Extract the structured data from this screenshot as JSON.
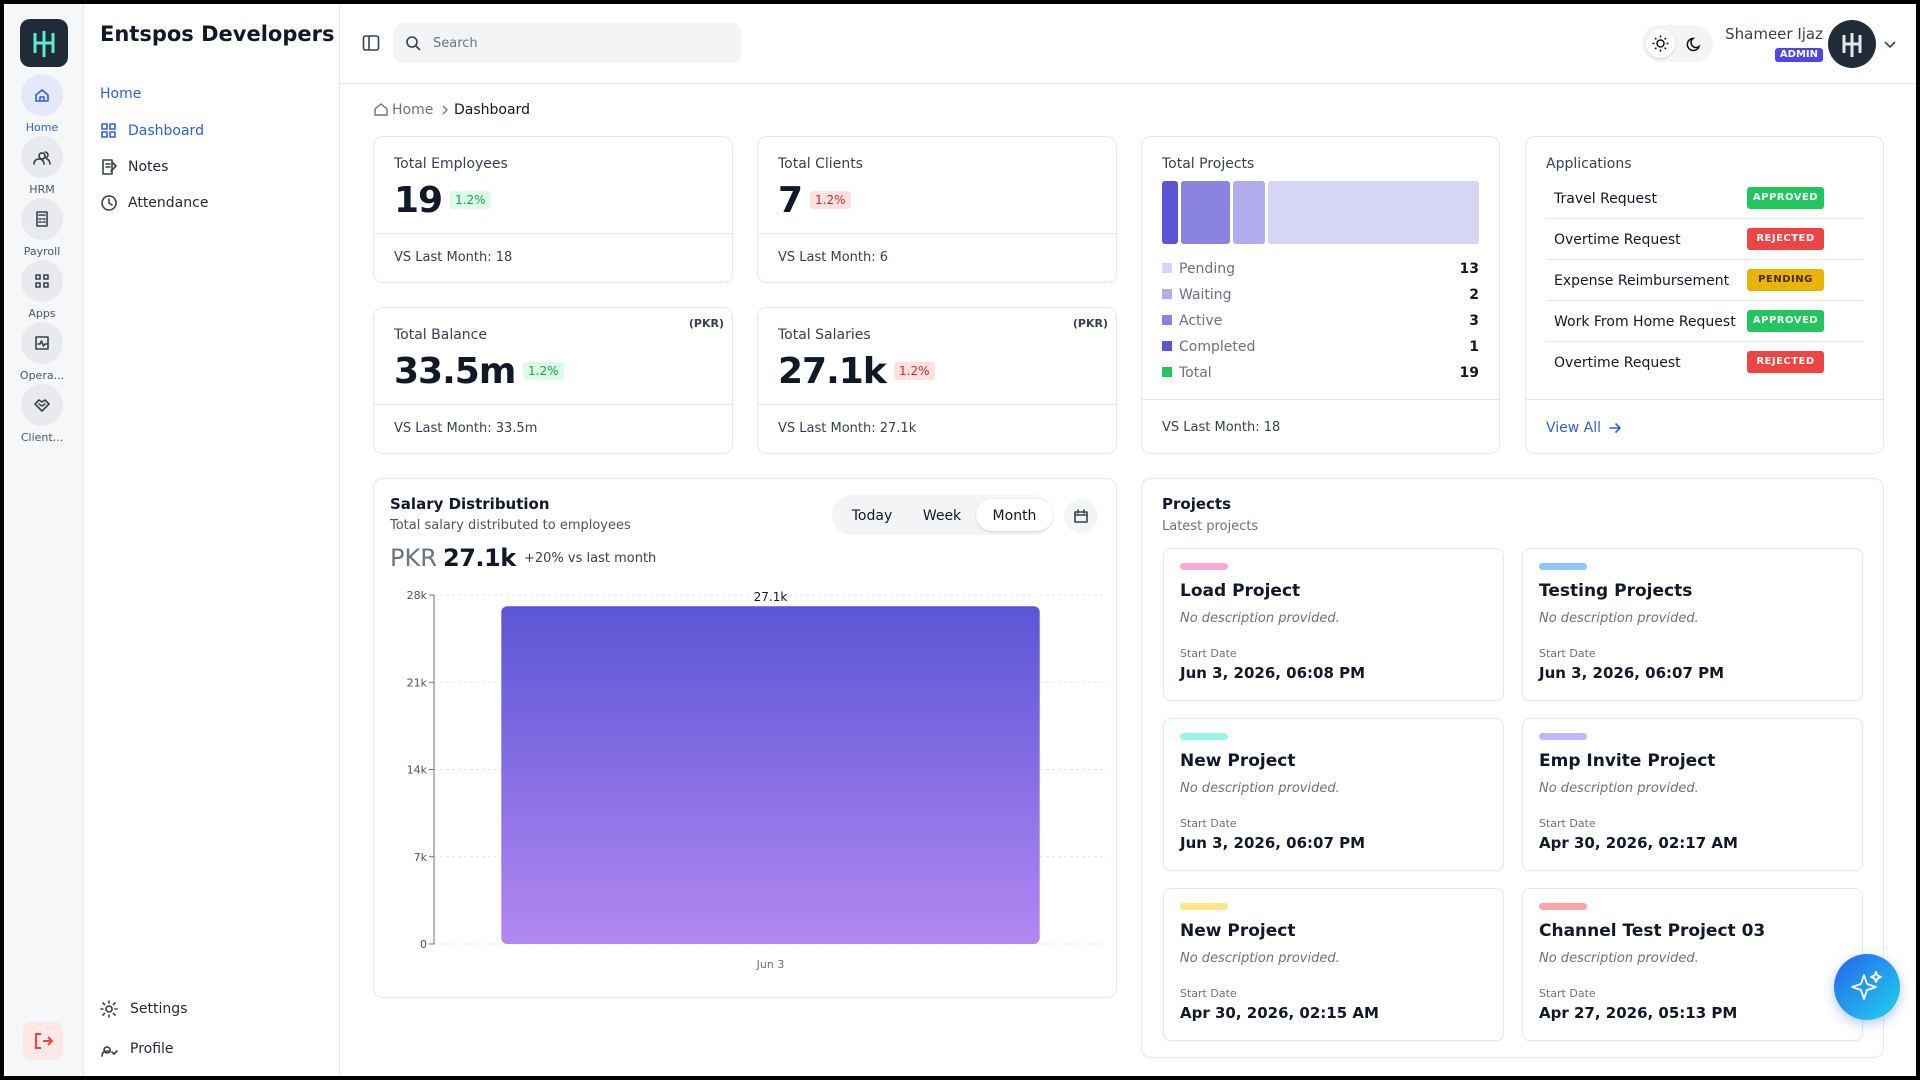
{
  "rail": {
    "items": [
      "Home",
      "HRM",
      "Payroll",
      "Apps",
      "Opera...",
      "Client..."
    ],
    "active": 0
  },
  "brand": "Entspos Developers",
  "nav": {
    "section": "Home",
    "items": [
      "Dashboard",
      "Notes",
      "Attendance"
    ],
    "active": 0,
    "footer": [
      "Settings",
      "Profile"
    ]
  },
  "topbar": {
    "search_placeholder": "Search",
    "user_name": "Shameer Ijaz",
    "user_role": "ADMIN"
  },
  "breadcrumb": [
    "Home",
    "Dashboard"
  ],
  "stats": [
    {
      "title": "Total Employees",
      "value": "19",
      "change": "1.2%",
      "change_color": "#16a34a",
      "change_bg": "#dcfce7",
      "previous": "VS Last Month: 18"
    },
    {
      "title": "Total Clients",
      "value": "7",
      "change": "1.2%",
      "change_color": "#dc2626",
      "change_bg": "#fee2e2",
      "previous": "VS Last Month: 6"
    },
    {
      "title": "Total Balance",
      "unit": "(PKR)",
      "value": "33.5m",
      "change": "1.2%",
      "change_color": "#16a34a",
      "change_bg": "#dcfce7",
      "previous": "VS Last Month: 33.5m"
    },
    {
      "title": "Total Salaries",
      "unit": "(PKR)",
      "value": "27.1k",
      "change": "1.2%",
      "change_color": "#dc2626",
      "change_bg": "#fee2e2",
      "previous": "VS Last Month: 27.1k"
    }
  ],
  "projects_summary": {
    "title": "Total Projects",
    "statuses": [
      {
        "name": "Pending",
        "count": 13,
        "color": "#d6d5f6"
      },
      {
        "name": "Waiting",
        "count": 2,
        "color": "#b0acee"
      },
      {
        "name": "Active",
        "count": 3,
        "color": "#8a84e0"
      },
      {
        "name": "Completed",
        "count": 1,
        "color": "#5b54d4"
      }
    ],
    "total_label": "Total",
    "total": 19,
    "total_color": "#22c55e",
    "previous": "VS Last Month: 18"
  },
  "applications": {
    "title": "Applications",
    "items": [
      {
        "name": "Travel Request",
        "status": "APPROVED",
        "color": "#22c55e",
        "text_color": "#ffffff"
      },
      {
        "name": "Overtime Request",
        "status": "REJECTED",
        "color": "#ef4444",
        "text_color": "#ffffff"
      },
      {
        "name": "Expense Reimbursement",
        "status": "PENDING",
        "color": "#eab308",
        "text_color": "#3f2d00"
      },
      {
        "name": "Work From Home Request",
        "status": "APPROVED",
        "color": "#22c55e",
        "text_color": "#ffffff"
      },
      {
        "name": "Overtime Request",
        "status": "REJECTED",
        "color": "#ef4444",
        "text_color": "#ffffff"
      }
    ],
    "link": "View All"
  },
  "salary": {
    "title": "Salary Distribution",
    "subtitle": "Total salary distributed to employees",
    "ranges": [
      "Today",
      "Week",
      "Month"
    ],
    "active_range": 2,
    "currency": "PKR",
    "amount": "27.1k",
    "change": "+20% vs last month"
  },
  "chart_data": {
    "type": "bar",
    "categories": [
      "Jun 3"
    ],
    "values": [
      27100
    ],
    "value_labels": [
      "27.1k"
    ],
    "gradient": [
      "#5b56d6",
      "#b387f1"
    ],
    "ylim": [
      0,
      28000
    ],
    "yticks": [
      0,
      {
        "value": 7000,
        "label": "7k"
      },
      {
        "value": 14000,
        "label": "14k"
      },
      {
        "value": 21000,
        "label": "21k"
      },
      {
        "value": 28000,
        "label": "28k"
      }
    ],
    "grid": true
  },
  "projects": {
    "title": "Projects",
    "subtitle": "Latest projects",
    "items": [
      {
        "name": "Load Project",
        "description": "No description provided.",
        "date_label": "Start Date",
        "date": "Jun 3, 2026, 06:08 PM",
        "color": "#f9a8d4"
      },
      {
        "name": "Testing Projects",
        "description": "No description provided.",
        "date_label": "Start Date",
        "date": "Jun 3, 2026, 06:07 PM",
        "color": "#93c5fd"
      },
      {
        "name": "New Project",
        "description": "No description provided.",
        "date_label": "Start Date",
        "date": "Jun 3, 2026, 06:07 PM",
        "color": "#99f6e4"
      },
      {
        "name": "Emp Invite Project",
        "description": "No description provided.",
        "date_label": "Start Date",
        "date": "Apr 30, 2026, 02:17 AM",
        "color": "#c4b5fd"
      },
      {
        "name": "New Project",
        "description": "No description provided.",
        "date_label": "Start Date",
        "date": "Apr 30, 2026, 02:15 AM",
        "color": "#fde68a"
      },
      {
        "name": "Channel Test Project 03",
        "description": "No description provided.",
        "date_label": "Start Date",
        "date": "Apr 27, 2026, 05:13 PM",
        "color": "#fca5a5"
      }
    ]
  }
}
